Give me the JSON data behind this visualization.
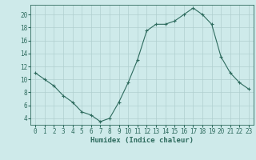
{
  "x": [
    0,
    1,
    2,
    3,
    4,
    5,
    6,
    7,
    8,
    9,
    10,
    11,
    12,
    13,
    14,
    15,
    16,
    17,
    18,
    19,
    20,
    21,
    22,
    23
  ],
  "y": [
    11,
    10,
    9,
    7.5,
    6.5,
    5,
    4.5,
    3.5,
    4,
    6.5,
    9.5,
    13,
    17.5,
    18.5,
    18.5,
    19,
    20,
    21,
    20,
    18.5,
    13.5,
    11,
    9.5,
    8.5
  ],
  "line_color": "#2e6b5e",
  "marker": "+",
  "marker_size": 3,
  "bg_color": "#ceeaea",
  "grid_color": "#b0cfcf",
  "tick_color": "#2e6b5e",
  "xlabel": "Humidex (Indice chaleur)",
  "xlim": [
    -0.5,
    23.5
  ],
  "ylim": [
    3,
    21.5
  ],
  "yticks": [
    4,
    6,
    8,
    10,
    12,
    14,
    16,
    18,
    20
  ],
  "xticks": [
    0,
    1,
    2,
    3,
    4,
    5,
    6,
    7,
    8,
    9,
    10,
    11,
    12,
    13,
    14,
    15,
    16,
    17,
    18,
    19,
    20,
    21,
    22,
    23
  ],
  "font_size": 5.5,
  "label_font_size": 6.5
}
